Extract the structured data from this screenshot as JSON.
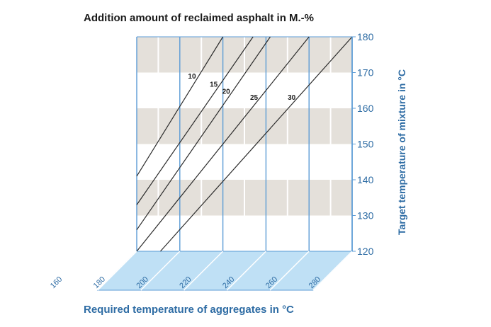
{
  "chart_data": {
    "type": "line",
    "title": "Addition amount of reclaimed asphalt in M.-%",
    "xlabel": "Required temperature of aggregates in °C",
    "ylabel": "Target temperature of mixture in °C",
    "xlim": [
      180,
      280
    ],
    "ylim": [
      120,
      180
    ],
    "x_ticks": [
      160,
      180,
      200,
      220,
      240,
      260,
      280
    ],
    "y_ticks": [
      120,
      130,
      140,
      150,
      160,
      170,
      180
    ],
    "grid": true,
    "series": [
      {
        "name": "10",
        "points": [
          [
            180,
            141
          ],
          [
            220,
            180
          ]
        ]
      },
      {
        "name": "15",
        "points": [
          [
            180,
            133
          ],
          [
            234,
            180
          ]
        ]
      },
      {
        "name": "20",
        "points": [
          [
            180,
            126
          ],
          [
            242,
            180
          ]
        ]
      },
      {
        "name": "25",
        "points": [
          [
            180,
            120
          ],
          [
            260,
            180
          ]
        ]
      },
      {
        "name": "30",
        "points": [
          [
            191,
            120
          ],
          [
            280,
            180
          ]
        ]
      }
    ],
    "colors": {
      "axis": "#5b9bd5",
      "band": "#e4e0da",
      "floor": "#bfe0f5",
      "line": "#2b2b2b",
      "text_blue": "#2e6ca4"
    }
  }
}
